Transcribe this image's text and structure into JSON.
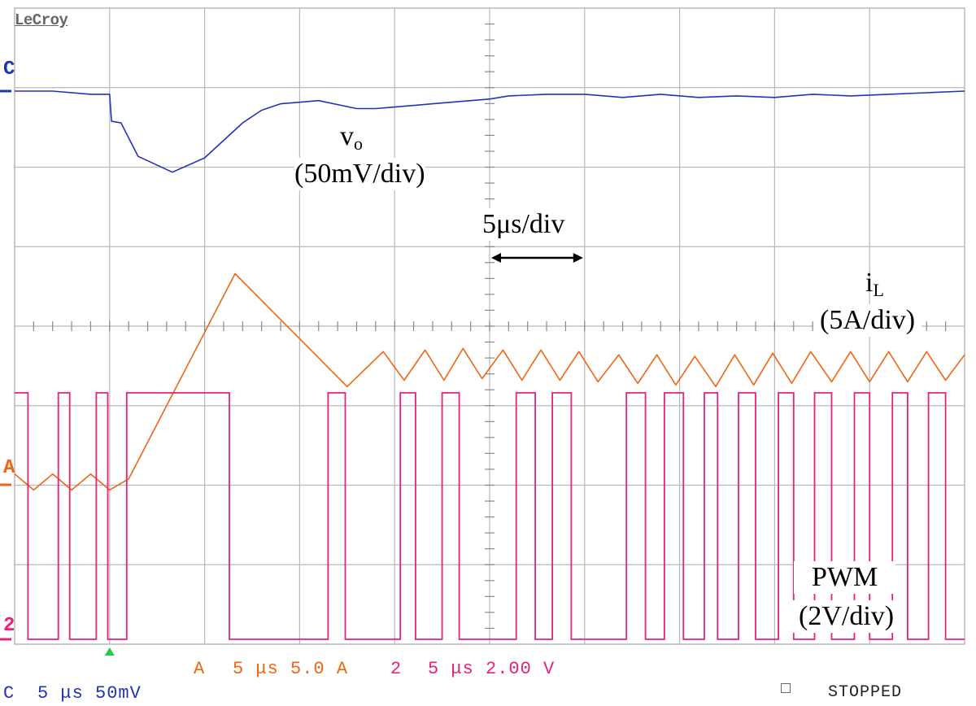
{
  "scope": {
    "brand": "LeCroy",
    "grid": {
      "hdiv": 10,
      "vdiv": 8
    },
    "colors": {
      "grid": "#b8b8b8",
      "channel_c": "#2233bb",
      "channel_a": "#ee6611",
      "channel_2": "#e8217a",
      "trigger": "#22cc44"
    },
    "channel_markers": {
      "c": "C",
      "a": "A",
      "two": "2"
    },
    "status": {
      "a_marker": "A",
      "a_settings": "5 μs 5.0 A",
      "two_marker": "2",
      "two_settings": "5 μs 2.00 V",
      "c_marker": "C",
      "c_settings": "5 μs 50mV",
      "state": "STOPPED"
    }
  },
  "annotations": {
    "vo_main": "v",
    "vo_sub": "o",
    "vo_scale": "(50mV/div)",
    "timebase": "5μs/div",
    "il_main": "i",
    "il_sub": "L",
    "il_scale": "(5A/div)",
    "pwm_label": "PWM",
    "pwm_scale": "(2V/div)"
  },
  "chart_data": {
    "type": "line",
    "title": "",
    "xlabel": "5μs/div",
    "xlim_us": [
      0,
      50
    ],
    "series": [
      {
        "name": "v",
        "scale": "50mV/div",
        "x_us": [
          0,
          2,
          4,
          5,
          5.1,
          5.6,
          6.5,
          8.3,
          10,
          12,
          13,
          14,
          16,
          18,
          19,
          20,
          22,
          24,
          25,
          26,
          28,
          30,
          32,
          34,
          36,
          38,
          40,
          42,
          44,
          46,
          48,
          50
        ],
        "y_mV": [
          0,
          0,
          -2,
          -2,
          -19,
          -20,
          -41,
          -51,
          -42,
          -20,
          -12,
          -8,
          -6,
          -11,
          -11,
          -10,
          -8,
          -6,
          -5,
          -3,
          -2,
          -2,
          -4,
          -2,
          -4,
          -3,
          -4,
          -2,
          -3,
          -2,
          -1,
          0
        ]
      },
      {
        "name": "i",
        "scale": "5A/div",
        "x_us": [
          0,
          1,
          2,
          3,
          4,
          5,
          6,
          11.6,
          17.5,
          19.4,
          20.5,
          21.6,
          22.6,
          23.6,
          24.6,
          25.7,
          26.7,
          27.7,
          28.7,
          29.7,
          30.7,
          31.8,
          32.8,
          33.8,
          34.8,
          35.8,
          36.9,
          37.9,
          38.9,
          39.9,
          40.9,
          41.9,
          43,
          44,
          45,
          46,
          47,
          48,
          49,
          50
        ],
        "y_A": [
          -9.3,
          -10.3,
          -9.3,
          -10.3,
          -9.3,
          -10.3,
          -9.6,
          3.3,
          -3.8,
          -1.6,
          -3.4,
          -1.5,
          -3.4,
          -1.4,
          -3.3,
          -1.5,
          -3.4,
          -1.5,
          -3.4,
          -1.6,
          -3.5,
          -1.8,
          -3.6,
          -1.8,
          -3.7,
          -1.9,
          -3.8,
          -1.8,
          -3.7,
          -1.7,
          -3.6,
          -1.6,
          -3.5,
          -1.6,
          -3.5,
          -1.6,
          -3.5,
          -1.6,
          -3.4,
          -1.8
        ]
      },
      {
        "name": "PWM",
        "scale": "2V/div",
        "high_intervals_us": [
          [
            0,
            0.7
          ],
          [
            2.3,
            2.9
          ],
          [
            4.3,
            4.9
          ],
          [
            5.9,
            11.3
          ],
          [
            16.5,
            17.4
          ],
          [
            20.3,
            21.1
          ],
          [
            22.5,
            23.4
          ],
          [
            26.4,
            27.4
          ],
          [
            28.3,
            29.3
          ],
          [
            32.2,
            33.2
          ],
          [
            34.2,
            35.2
          ],
          [
            36.3,
            37
          ],
          [
            38.1,
            39
          ],
          [
            40.2,
            41
          ],
          [
            42.1,
            43
          ],
          [
            44.2,
            45
          ],
          [
            46.2,
            47
          ],
          [
            48.1,
            49
          ]
        ],
        "high_level_V": 6.2,
        "low_level_V": 0
      }
    ]
  }
}
